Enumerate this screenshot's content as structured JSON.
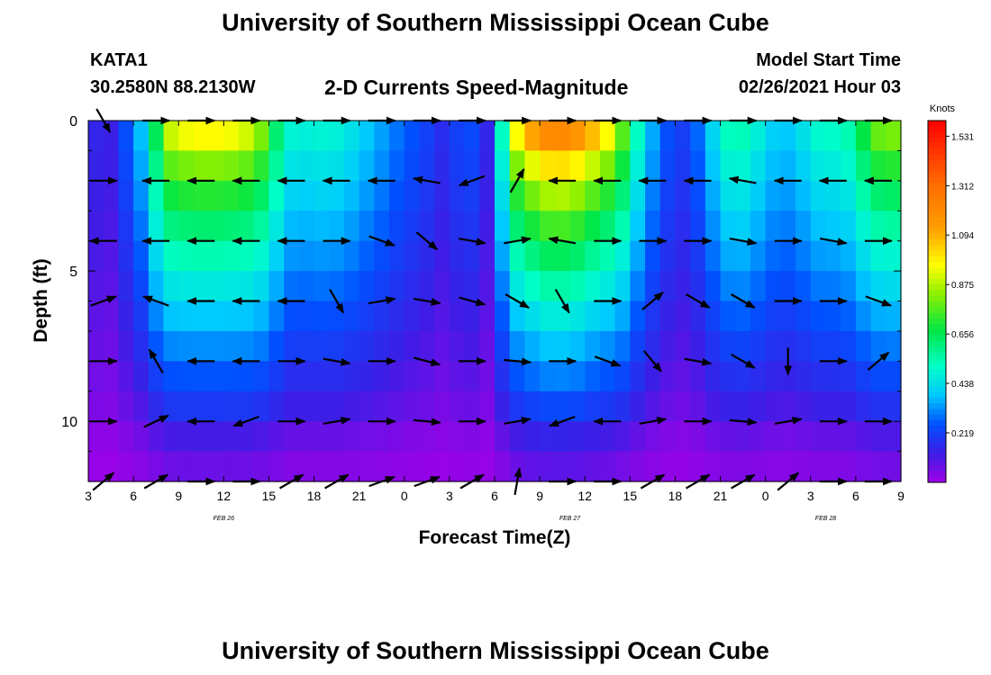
{
  "header": {
    "title_top": "University of Southern Mississippi Ocean Cube",
    "title_bottom": "University of Southern Mississippi Ocean Cube",
    "station": "KATA1",
    "coords": "30.2580N 88.2130W",
    "subtitle": "2-D Currents Speed-Magnitude",
    "model_start_label": "Model Start Time",
    "model_start_value": "02/26/2021 Hour 03"
  },
  "chart_data": {
    "type": "heatmap",
    "title": "2-D Currents Speed-Magnitude",
    "xlabel": "Forecast Time(Z)",
    "ylabel": "Depth (ft)",
    "x_range_hours": [
      0,
      54
    ],
    "y_range_ft": [
      0,
      12
    ],
    "x_ticks": [
      "3",
      "6",
      "9",
      "12",
      "15",
      "18",
      "21",
      "0",
      "3",
      "6",
      "9",
      "12",
      "15",
      "18",
      "21",
      "0",
      "3",
      "6",
      "9"
    ],
    "y_ticks": [
      "0",
      "5",
      "10"
    ],
    "date_labels": [
      {
        "text": "FEB 26",
        "hour": 9
      },
      {
        "text": "FEB 27",
        "hour": 32
      },
      {
        "text": "FEB 28",
        "hour": 49
      }
    ],
    "colorbar": {
      "title": "Knots",
      "min": 0,
      "max": 1.6,
      "labels": [
        "1.531",
        "1.312",
        "1.094",
        "0.875",
        "0.656",
        "0.438",
        "0.219"
      ],
      "label_values": [
        1.531,
        1.312,
        1.094,
        0.875,
        0.656,
        0.438,
        0.219
      ]
    },
    "depth_rows_ft": [
      0.5,
      1.5,
      2.5,
      3.5,
      4.5,
      5.5,
      6.5,
      7.5,
      8.5,
      9.5,
      10.5,
      11.5
    ],
    "speed_profile_hourly": [
      0.18,
      0.12,
      0.15,
      0.35,
      0.42,
      0.95,
      1.05,
      1.1,
      1.12,
      1.1,
      1.05,
      0.98,
      0.78,
      0.52,
      0.48,
      0.5,
      0.5,
      0.48,
      0.42,
      0.38,
      0.32,
      0.28,
      0.24,
      0.2,
      0.14,
      0.3,
      0.18,
      0.12,
      0.95,
      1.25,
      1.4,
      1.45,
      1.42,
      1.35,
      1.2,
      1.0,
      0.65,
      0.42,
      0.3,
      0.2,
      0.22,
      0.35,
      0.5,
      0.58,
      0.52,
      0.45,
      0.38,
      0.42,
      0.48,
      0.55,
      0.5,
      0.62,
      0.8,
      0.9,
      0.85
    ],
    "vector_rows_ft": [
      0,
      2,
      4,
      6,
      8,
      10,
      12
    ],
    "vector_columns_hour": [
      1,
      4.5,
      7.5,
      10.5,
      13.5,
      16.5,
      19.5,
      22.5,
      25.5,
      28.5,
      31.5,
      34.5,
      37.5,
      40.5,
      43.5,
      46.5,
      49.5,
      52.5
    ],
    "vector_directions_deg": [
      [
        300,
        0,
        0,
        0,
        0,
        0,
        0,
        0,
        0,
        0,
        0,
        0,
        0,
        0,
        0,
        0,
        0,
        0
      ],
      [
        0,
        180,
        180,
        180,
        180,
        180,
        180,
        170,
        200,
        60,
        180,
        180,
        180,
        180,
        170,
        180,
        180,
        180
      ],
      [
        180,
        180,
        180,
        180,
        180,
        0,
        340,
        320,
        350,
        10,
        170,
        0,
        0,
        0,
        350,
        0,
        350,
        0
      ],
      [
        20,
        160,
        180,
        180,
        180,
        300,
        10,
        350,
        345,
        330,
        300,
        0,
        40,
        330,
        330,
        0,
        0,
        340
      ],
      [
        0,
        120,
        180,
        180,
        0,
        350,
        0,
        345,
        0,
        355,
        0,
        340,
        310,
        350,
        330,
        270,
        0,
        40
      ],
      [
        0,
        25,
        180,
        200,
        0,
        10,
        0,
        355,
        0,
        10,
        200,
        180,
        10,
        0,
        355,
        10,
        0,
        0
      ],
      [
        40,
        30,
        0,
        0,
        30,
        30,
        20,
        20,
        30,
        80,
        0,
        0,
        30,
        30,
        30,
        40,
        0,
        0
      ]
    ]
  }
}
